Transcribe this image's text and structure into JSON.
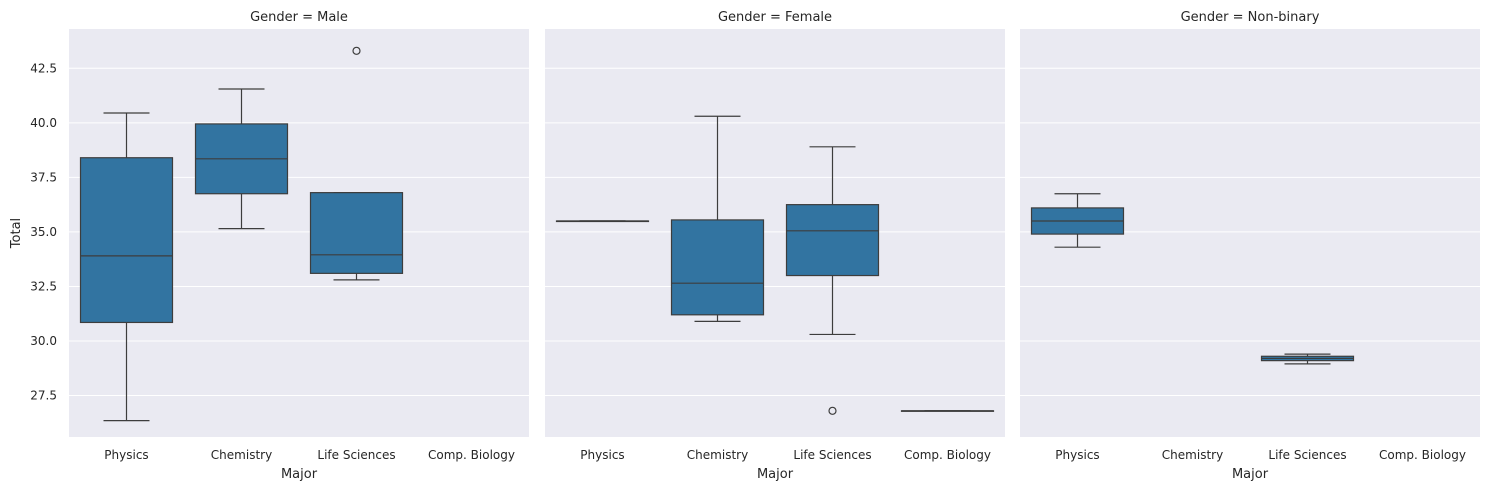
{
  "chart_data": {
    "type": "box",
    "ylabel": "Total",
    "xlabel": "Major",
    "categories": [
      "Physics",
      "Chemistry",
      "Life Sciences",
      "Comp. Biology"
    ],
    "ylim": [
      25.6,
      44.3
    ],
    "yticks": [
      27.5,
      30.0,
      32.5,
      35.0,
      37.5,
      40.0,
      42.5
    ],
    "ytick_labels": [
      "27.5",
      "30.0",
      "32.5",
      "35.0",
      "37.5",
      "40.0",
      "42.5"
    ],
    "grid": true,
    "box_color": "#3274a1",
    "line_color": "#3d3d3d",
    "panel_bg": "#eaeaf2",
    "panels": [
      {
        "title": "Gender = Male",
        "boxes": [
          {
            "category": "Physics",
            "q1": 30.85,
            "median": 33.9,
            "q3": 38.4,
            "whisker_low": 26.35,
            "whisker_high": 40.45,
            "outliers": []
          },
          {
            "category": "Chemistry",
            "q1": 36.75,
            "median": 38.35,
            "q3": 39.95,
            "whisker_low": 35.15,
            "whisker_high": 41.55,
            "outliers": []
          },
          {
            "category": "Life Sciences",
            "q1": 33.1,
            "median": 33.95,
            "q3": 36.8,
            "whisker_low": 32.8,
            "whisker_high": 36.8,
            "outliers": [
              43.3
            ]
          }
        ]
      },
      {
        "title": "Gender = Female",
        "boxes": [
          {
            "category": "Physics",
            "q1": 35.5,
            "median": 35.5,
            "q3": 35.5,
            "whisker_low": 35.5,
            "whisker_high": 35.5,
            "outliers": []
          },
          {
            "category": "Chemistry",
            "q1": 31.2,
            "median": 32.65,
            "q3": 35.55,
            "whisker_low": 30.9,
            "whisker_high": 40.3,
            "outliers": []
          },
          {
            "category": "Life Sciences",
            "q1": 33.0,
            "median": 35.05,
            "q3": 36.25,
            "whisker_low": 30.3,
            "whisker_high": 38.9,
            "outliers": [
              26.8
            ]
          },
          {
            "category": "Comp. Biology",
            "q1": 26.8,
            "median": 26.8,
            "q3": 26.8,
            "whisker_low": 26.8,
            "whisker_high": 26.8,
            "outliers": []
          }
        ]
      },
      {
        "title": "Gender = Non-binary",
        "boxes": [
          {
            "category": "Physics",
            "q1": 34.9,
            "median": 35.5,
            "q3": 36.1,
            "whisker_low": 34.3,
            "whisker_high": 36.75,
            "outliers": []
          },
          {
            "category": "Life Sciences",
            "q1": 29.1,
            "median": 29.2,
            "q3": 29.3,
            "whisker_low": 28.95,
            "whisker_high": 29.4,
            "outliers": []
          }
        ]
      }
    ]
  }
}
